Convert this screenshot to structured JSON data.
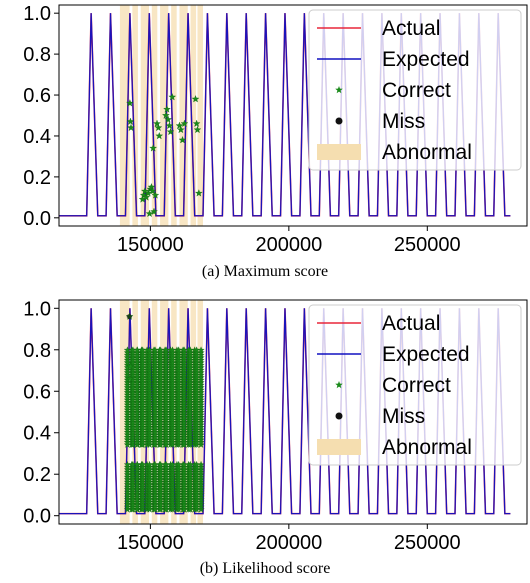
{
  "colors": {
    "actual": "#e8263a",
    "expected": "#1010c0",
    "correct": "#1a8a1a",
    "miss": "#111111",
    "abnormal": "#f5deb0",
    "axis": "#000000"
  },
  "chart_data": [
    {
      "type": "line",
      "caption": "(a) Maximum score",
      "xlim": [
        117000,
        286000
      ],
      "ylim": [
        -0.04,
        1.04
      ],
      "x_ticks": [
        150000,
        200000,
        250000
      ],
      "x_tick_labels": [
        "150000",
        "200000",
        "250000"
      ],
      "y_ticks": [
        0.0,
        0.2,
        0.4,
        0.6,
        0.8,
        1.0
      ],
      "y_tick_labels": [
        "0.0",
        "0.2",
        "0.4",
        "0.6",
        "0.8",
        "1.0"
      ],
      "legend": {
        "placement": "top-right",
        "entries": [
          {
            "label": "Actual",
            "marker": "line",
            "color_key": "actual"
          },
          {
            "label": "Expected",
            "marker": "line",
            "color_key": "expected"
          },
          {
            "label": "Correct",
            "marker": "star",
            "color_key": "correct"
          },
          {
            "label": "Miss",
            "marker": "dot",
            "color_key": "miss"
          },
          {
            "label": "Abnormal",
            "marker": "patch",
            "color_key": "abnormal"
          }
        ]
      },
      "series": [
        {
          "name": "Actual",
          "kind": "periodic-pulse",
          "pulse_starts_x": [
            127000,
            134000,
            141000,
            148000,
            155000,
            162000,
            169000,
            176000,
            183000,
            190000,
            197000,
            204000,
            211000,
            218000,
            225000,
            232000,
            239000,
            246000,
            253000,
            260000,
            267000,
            274000
          ],
          "low": 0.01,
          "high": 1.0
        },
        {
          "name": "Expected",
          "kind": "periodic-pulse",
          "pulse_starts_x": [
            127000,
            134000,
            141000,
            148000,
            155000,
            162000,
            169000,
            176000,
            183000,
            190000,
            197000,
            204000,
            211000,
            218000,
            225000,
            232000,
            239000,
            246000,
            253000,
            260000,
            267000,
            274000
          ],
          "low": 0.01,
          "high": 1.0
        }
      ],
      "abnormal_bands": [
        [
          139000,
          142500
        ],
        [
          143500,
          145500
        ],
        [
          146500,
          149500
        ],
        [
          150500,
          152500
        ],
        [
          153500,
          156500
        ],
        [
          157500,
          159500
        ],
        [
          160500,
          163500
        ],
        [
          164500,
          166500
        ],
        [
          167000,
          169000
        ]
      ],
      "correct_points": [
        {
          "x": 142600,
          "y": 0.56
        },
        {
          "x": 142800,
          "y": 0.47
        },
        {
          "x": 143000,
          "y": 0.44
        },
        {
          "x": 147200,
          "y": 0.09
        },
        {
          "x": 147600,
          "y": 0.11
        },
        {
          "x": 148000,
          "y": 0.13
        },
        {
          "x": 148500,
          "y": 0.1
        },
        {
          "x": 149200,
          "y": 0.12
        },
        {
          "x": 149700,
          "y": 0.02
        },
        {
          "x": 150000,
          "y": 0.14
        },
        {
          "x": 150400,
          "y": 0.15
        },
        {
          "x": 150800,
          "y": 0.13
        },
        {
          "x": 151300,
          "y": 0.03
        },
        {
          "x": 151000,
          "y": 0.34
        },
        {
          "x": 151800,
          "y": 0.11
        },
        {
          "x": 152400,
          "y": 0.46
        },
        {
          "x": 152900,
          "y": 0.44
        },
        {
          "x": 153200,
          "y": 0.4
        },
        {
          "x": 155600,
          "y": 0.5
        },
        {
          "x": 156000,
          "y": 0.53
        },
        {
          "x": 156400,
          "y": 0.48
        },
        {
          "x": 156900,
          "y": 0.45
        },
        {
          "x": 157300,
          "y": 0.42
        },
        {
          "x": 157900,
          "y": 0.59
        },
        {
          "x": 160500,
          "y": 0.45
        },
        {
          "x": 161000,
          "y": 0.43
        },
        {
          "x": 161600,
          "y": 0.38
        },
        {
          "x": 162300,
          "y": 0.46
        },
        {
          "x": 166300,
          "y": 0.58
        },
        {
          "x": 166700,
          "y": 0.46
        },
        {
          "x": 167000,
          "y": 0.43
        },
        {
          "x": 167500,
          "y": 0.12
        }
      ],
      "miss_points": []
    },
    {
      "type": "line",
      "caption": "(b) Likelihood score",
      "xlim": [
        117000,
        286000
      ],
      "ylim": [
        -0.04,
        1.04
      ],
      "x_ticks": [
        150000,
        200000,
        250000
      ],
      "x_tick_labels": [
        "150000",
        "200000",
        "250000"
      ],
      "y_ticks": [
        0.0,
        0.2,
        0.4,
        0.6,
        0.8,
        1.0
      ],
      "y_tick_labels": [
        "0.0",
        "0.2",
        "0.4",
        "0.6",
        "0.8",
        "1.0"
      ],
      "legend": {
        "placement": "top-right",
        "entries": [
          {
            "label": "Actual",
            "marker": "line",
            "color_key": "actual"
          },
          {
            "label": "Expected",
            "marker": "line",
            "color_key": "expected"
          },
          {
            "label": "Correct",
            "marker": "star",
            "color_key": "correct"
          },
          {
            "label": "Miss",
            "marker": "dot",
            "color_key": "miss"
          },
          {
            "label": "Abnormal",
            "marker": "patch",
            "color_key": "abnormal"
          }
        ]
      },
      "series": [
        {
          "name": "Actual",
          "kind": "periodic-pulse",
          "pulse_starts_x": [
            127000,
            134000,
            141000,
            148000,
            155000,
            162000,
            169000,
            176000,
            183000,
            190000,
            197000,
            204000,
            211000,
            218000,
            225000,
            232000,
            239000,
            246000,
            253000,
            260000,
            267000,
            274000
          ],
          "low": 0.01,
          "high": 1.0
        },
        {
          "name": "Expected",
          "kind": "periodic-pulse",
          "pulse_starts_x": [
            127000,
            134000,
            141000,
            148000,
            155000,
            162000,
            169000,
            176000,
            183000,
            190000,
            197000,
            204000,
            211000,
            218000,
            225000,
            232000,
            239000,
            246000,
            253000,
            260000,
            267000,
            274000
          ],
          "low": 0.01,
          "high": 1.0
        }
      ],
      "abnormal_bands": [
        [
          139000,
          142500
        ],
        [
          143500,
          145500
        ],
        [
          146500,
          149500
        ],
        [
          150500,
          152500
        ],
        [
          153500,
          156500
        ],
        [
          157500,
          159500
        ],
        [
          160500,
          163500
        ],
        [
          164500,
          166500
        ],
        [
          167000,
          169000
        ]
      ],
      "correct_columns": [
        {
          "x": 142500,
          "y_from": 0.03,
          "y_to": 0.8
        },
        {
          "x": 144500,
          "y_from": 0.03,
          "y_to": 0.8
        },
        {
          "x": 146000,
          "y_from": 0.03,
          "y_to": 0.8
        },
        {
          "x": 148000,
          "y_from": 0.03,
          "y_to": 0.8
        },
        {
          "x": 150500,
          "y_from": 0.03,
          "y_to": 0.8
        },
        {
          "x": 152500,
          "y_from": 0.03,
          "y_to": 0.8
        },
        {
          "x": 154500,
          "y_from": 0.03,
          "y_to": 0.8
        },
        {
          "x": 156500,
          "y_from": 0.03,
          "y_to": 0.8
        },
        {
          "x": 158800,
          "y_from": 0.03,
          "y_to": 0.8
        },
        {
          "x": 161000,
          "y_from": 0.03,
          "y_to": 0.8
        },
        {
          "x": 163000,
          "y_from": 0.03,
          "y_to": 0.8
        },
        {
          "x": 165200,
          "y_from": 0.03,
          "y_to": 0.8
        },
        {
          "x": 167500,
          "y_from": 0.03,
          "y_to": 0.8
        }
      ],
      "correct_gap": [
        0.25,
        0.34
      ],
      "correct_points": [
        {
          "x": 142500,
          "y": 0.96
        },
        {
          "x": 142700,
          "y": 0.72
        },
        {
          "x": 142600,
          "y": 0.66
        }
      ],
      "miss_points": [
        {
          "x": 142400,
          "y": 0.96
        }
      ]
    }
  ]
}
